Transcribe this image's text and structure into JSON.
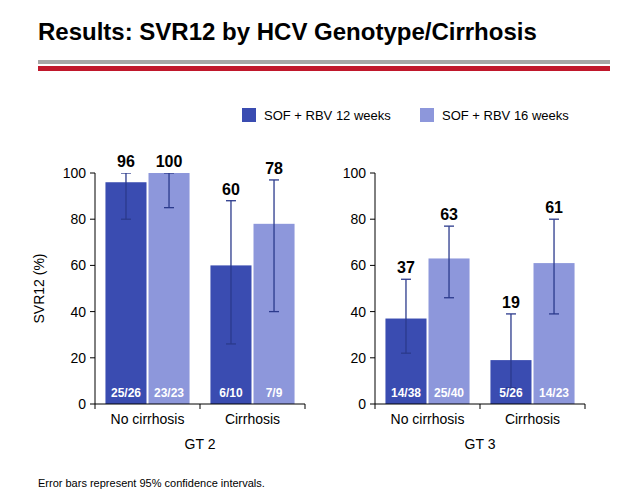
{
  "title": "Results: SVR12 by HCV Genotype/Cirrhosis",
  "footnote": "Error bars represent 95% confidence intervals.",
  "chart_data": [
    {
      "type": "bar",
      "x_label": "GT 2",
      "y_label": "SVR12 (%)",
      "categories": [
        "No cirrhosis",
        "Cirrhosis"
      ],
      "ylim": [
        0,
        100
      ],
      "yticks": [
        0,
        20,
        40,
        60,
        80,
        100
      ],
      "grid": false,
      "legend": "top",
      "data_labels": true,
      "series": [
        {
          "name": "SOF + RBV 12 weeks",
          "color": "#3a4cb1",
          "values": [
            96,
            60
          ],
          "ci_low": [
            80,
            26
          ],
          "ci_high": [
            100,
            88
          ],
          "counts": [
            "25/26",
            "6/10"
          ]
        },
        {
          "name": "SOF + RBV 16 weeks",
          "color": "#8d97db",
          "values": [
            100,
            78
          ],
          "ci_low": [
            85,
            40
          ],
          "ci_high": [
            100,
            97
          ],
          "counts": [
            "23/23",
            "7/9"
          ]
        }
      ]
    },
    {
      "type": "bar",
      "x_label": "GT 3",
      "categories": [
        "No cirrhosis",
        "Cirrhosis"
      ],
      "ylim": [
        0,
        100
      ],
      "yticks": [
        0,
        20,
        40,
        60,
        80,
        100
      ],
      "grid": false,
      "data_labels": true,
      "series": [
        {
          "color": "#3a4cb1",
          "values": [
            37,
            19
          ],
          "ci_low": [
            22,
            7
          ],
          "ci_high": [
            54,
            39
          ],
          "counts": [
            "14/38",
            "5/26"
          ]
        },
        {
          "color": "#8d97db",
          "values": [
            63,
            61
          ],
          "ci_low": [
            46,
            39
          ],
          "ci_high": [
            77,
            80
          ],
          "counts": [
            "25/40",
            "14/23"
          ]
        }
      ]
    }
  ]
}
